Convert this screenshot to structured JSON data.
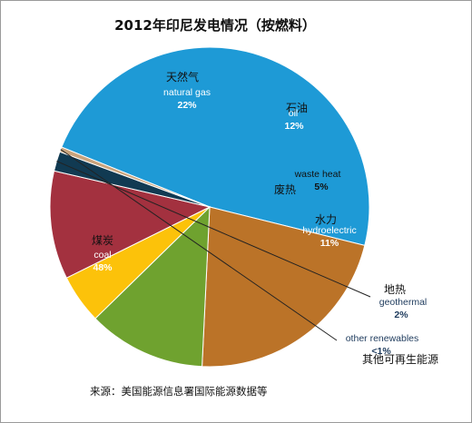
{
  "chart_data": {
    "type": "pie",
    "title": "2012年印尼发电情况（按燃料）",
    "slices": [
      {
        "label_cn": "煤炭",
        "label_en": "coal",
        "value": 48,
        "pct": "48%",
        "color": "#1e9ad6"
      },
      {
        "label_cn": "天然气",
        "label_en": "natural gas",
        "value": 22,
        "pct": "22%",
        "color": "#bb7328"
      },
      {
        "label_cn": "石油",
        "label_en": "oil",
        "value": 12,
        "pct": "12%",
        "color": "#6fa22f"
      },
      {
        "label_cn": "废热",
        "label_en": "waste heat",
        "value": 5,
        "pct": "5%",
        "color": "#fcc20a"
      },
      {
        "label_cn": "水力",
        "label_en": "hydroelectric",
        "value": 11,
        "pct": "11%",
        "color": "#a3313f"
      },
      {
        "label_cn": "地热",
        "label_en": "geothermal",
        "value": 2,
        "pct": "2%",
        "color": "#113a52"
      },
      {
        "label_cn": "其他可再生能源",
        "label_en": "other renewables",
        "value": 0.5,
        "pct": "<1%",
        "color": "#c9a37c"
      }
    ],
    "source": "来源：美国能源信息署国际能源数据等"
  }
}
